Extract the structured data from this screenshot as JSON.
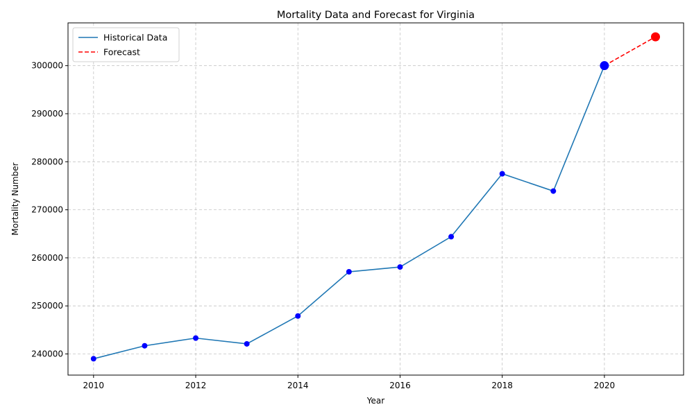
{
  "chart_data": {
    "type": "line",
    "title": "Mortality Data and Forecast for Virginia",
    "xlabel": "Year",
    "ylabel": "Mortality Number",
    "xlim": [
      2009.5,
      2021.55
    ],
    "ylim": [
      235600,
      308900
    ],
    "xticks": [
      2010,
      2012,
      2014,
      2016,
      2018,
      2020
    ],
    "yticks": [
      240000,
      250000,
      260000,
      270000,
      280000,
      290000,
      300000
    ],
    "grid": true,
    "legend_position": "top-left",
    "series": [
      {
        "name": "Historical Data",
        "style": "solid",
        "color": "#1f77b4",
        "marker_color": "#0000ff",
        "x": [
          2010,
          2011,
          2012,
          2013,
          2014,
          2015,
          2016,
          2017,
          2018,
          2019,
          2020
        ],
        "y": [
          239000,
          241700,
          243300,
          242100,
          247900,
          257100,
          258100,
          264400,
          277500,
          273900,
          300000
        ]
      },
      {
        "name": "Forecast",
        "style": "dashed",
        "color": "#ff0000",
        "marker_color": "#ff0000",
        "x": [
          2020,
          2021
        ],
        "y": [
          300000,
          306000
        ]
      }
    ],
    "highlighted_points": [
      {
        "x": 2020,
        "y": 300000,
        "color": "#0000ff"
      },
      {
        "x": 2021,
        "y": 306000,
        "color": "#ff0000"
      }
    ]
  }
}
